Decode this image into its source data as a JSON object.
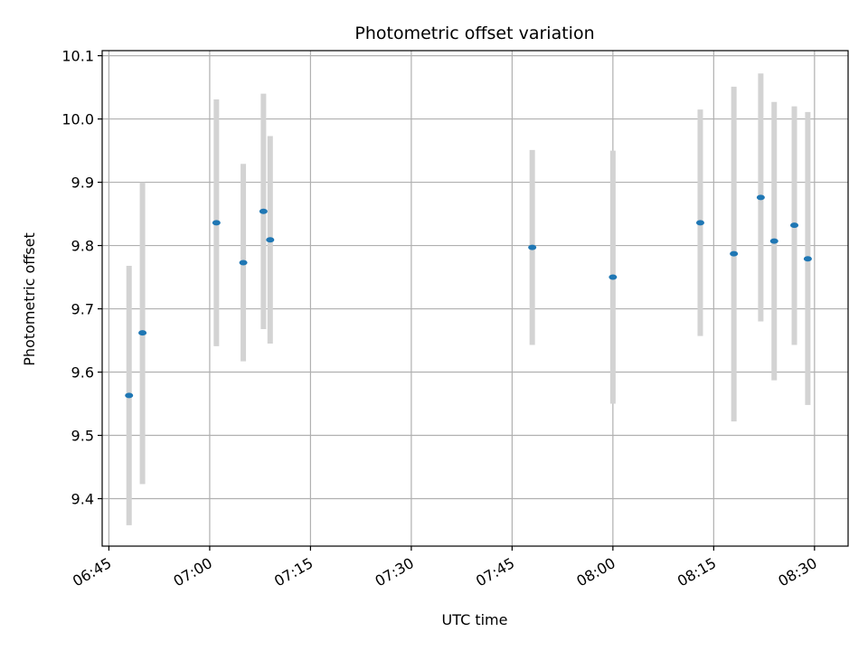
{
  "chart_data": {
    "type": "scatter",
    "title": "Photometric offset variation",
    "xlabel": "UTC time",
    "ylabel": "Photometric offset",
    "x_ticks": [
      "06:45",
      "07:00",
      "07:15",
      "07:30",
      "07:45",
      "08:00",
      "08:15",
      "08:30"
    ],
    "y_ticks": [
      "9.4",
      "9.5",
      "9.6",
      "9.7",
      "9.8",
      "9.9",
      "10.0",
      "10.1"
    ],
    "xlim": [
      "06:44",
      "08:35"
    ],
    "ylim": [
      9.325,
      10.108
    ],
    "grid": true,
    "point_color": "#1f77b4",
    "errorbar_color": "#d3d3d3",
    "series": [
      {
        "points": [
          {
            "x": "06:48",
            "y": 9.563,
            "low": 9.358,
            "high": 9.768
          },
          {
            "x": "06:50",
            "y": 9.662,
            "low": 9.423,
            "high": 9.9
          },
          {
            "x": "07:01",
            "y": 9.836,
            "low": 9.641,
            "high": 10.031
          },
          {
            "x": "07:05",
            "y": 9.773,
            "low": 9.617,
            "high": 9.929
          },
          {
            "x": "07:08",
            "y": 9.854,
            "low": 9.668,
            "high": 10.04
          },
          {
            "x": "07:09",
            "y": 9.809,
            "low": 9.645,
            "high": 9.973
          },
          {
            "x": "07:48",
            "y": 9.797,
            "low": 9.643,
            "high": 9.951
          },
          {
            "x": "08:00",
            "y": 9.75,
            "low": 9.55,
            "high": 9.95
          },
          {
            "x": "08:13",
            "y": 9.836,
            "low": 9.657,
            "high": 10.015
          },
          {
            "x": "08:18",
            "y": 9.787,
            "low": 9.522,
            "high": 10.051
          },
          {
            "x": "08:22",
            "y": 9.876,
            "low": 9.68,
            "high": 10.072
          },
          {
            "x": "08:24",
            "y": 9.807,
            "low": 9.587,
            "high": 10.027
          },
          {
            "x": "08:27",
            "y": 9.832,
            "low": 9.643,
            "high": 10.02
          },
          {
            "x": "08:29",
            "y": 9.779,
            "low": 9.548,
            "high": 10.011
          }
        ]
      }
    ]
  }
}
